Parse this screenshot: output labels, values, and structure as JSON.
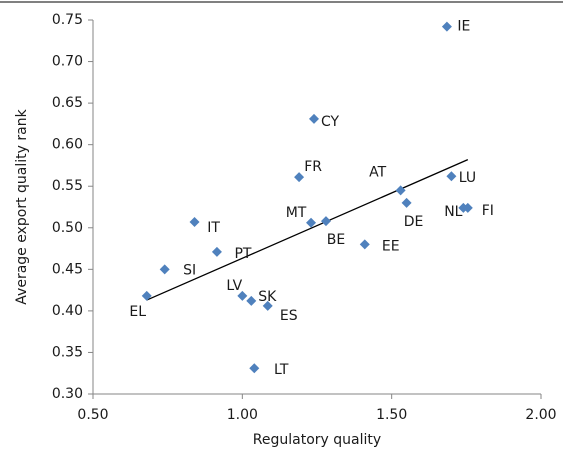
{
  "chart_data": {
    "type": "scatter",
    "x_label": "Regulatory quality",
    "y_label": "Average export quality rank",
    "xlim": [
      0.5,
      2.0
    ],
    "ylim": [
      0.3,
      0.75
    ],
    "xticks": [
      {
        "value": 0.5,
        "label": "0.50"
      },
      {
        "value": 1.0,
        "label": "1.00"
      },
      {
        "value": 1.5,
        "label": "1.50"
      },
      {
        "value": 2.0,
        "label": "2.00"
      }
    ],
    "yticks": [
      {
        "value": 0.3,
        "label": "0.30"
      },
      {
        "value": 0.35,
        "label": "0.35"
      },
      {
        "value": 0.4,
        "label": "0.40"
      },
      {
        "value": 0.45,
        "label": "0.45"
      },
      {
        "value": 0.5,
        "label": "0.50"
      },
      {
        "value": 0.55,
        "label": "0.55"
      },
      {
        "value": 0.6,
        "label": "0.60"
      },
      {
        "value": 0.65,
        "label": "0.65"
      },
      {
        "value": 0.7,
        "label": "0.70"
      },
      {
        "value": 0.75,
        "label": "0.75"
      }
    ],
    "color": "#4f81bd",
    "labels": [
      "IE",
      "CY",
      "FR",
      "AT",
      "LU",
      "DE",
      "NL",
      "FI",
      "MT",
      "BE",
      "EE",
      "IT",
      "PT",
      "SI",
      "EL",
      "LV",
      "SK",
      "ES",
      "LT"
    ],
    "x": [
      1.685,
      1.24,
      1.19,
      1.53,
      1.7,
      1.55,
      1.74,
      1.755,
      1.23,
      1.28,
      1.41,
      0.84,
      0.915,
      0.74,
      0.68,
      1.0,
      1.03,
      1.085,
      1.04
    ],
    "y": [
      0.742,
      0.631,
      0.561,
      0.545,
      0.562,
      0.53,
      0.524,
      0.524,
      0.506,
      0.508,
      0.48,
      0.507,
      0.471,
      0.45,
      0.418,
      0.418,
      0.412,
      0.406,
      0.331
    ],
    "trendline": {
      "x": [
        0.68,
        1.755
      ],
      "y": [
        0.413,
        0.582
      ]
    }
  }
}
